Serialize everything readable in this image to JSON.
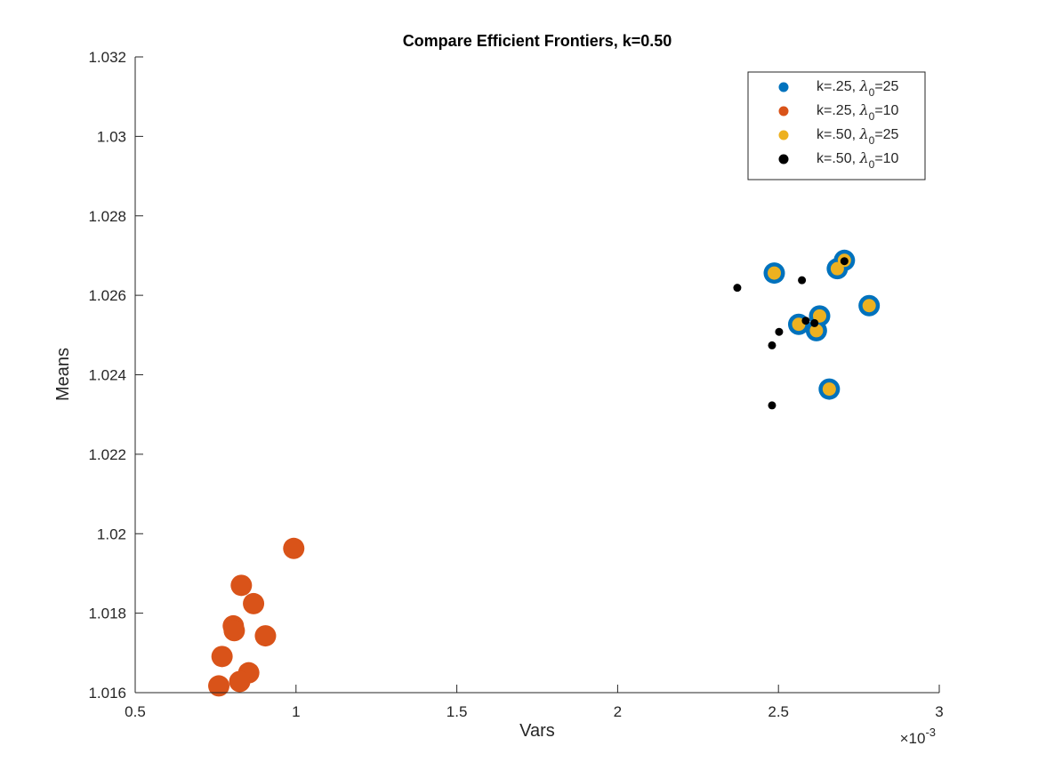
{
  "chart_data": {
    "type": "scatter",
    "title": "Compare Efficient Frontiers, k=0.50",
    "xlabel": "Vars",
    "ylabel": "Means",
    "x_exponent_label": "×10",
    "x_exponent_power": "-3",
    "xlim": [
      0.5,
      3
    ],
    "ylim": [
      1.016,
      1.032
    ],
    "x_ticks": [
      0.5,
      1,
      1.5,
      2,
      2.5,
      3
    ],
    "x_tick_labels": [
      "0.5",
      "1",
      "1.5",
      "2",
      "2.5",
      "3"
    ],
    "y_ticks": [
      1.016,
      1.018,
      1.02,
      1.022,
      1.024,
      1.026,
      1.028,
      1.03,
      1.032
    ],
    "y_tick_labels": [
      "1.016",
      "1.018",
      "1.02",
      "1.022",
      "1.024",
      "1.026",
      "1.028",
      "1.03",
      "1.032"
    ],
    "grid": false,
    "legend_position": "top-right",
    "series": [
      {
        "legend_prefix": "k=.25, ",
        "legend_sub": "0",
        "legend_suffix": "=25",
        "color": "#0072BD",
        "marker": "large",
        "points": [
          [
            2.487,
            1.02656
          ],
          [
            2.683,
            1.02667
          ],
          [
            2.705,
            1.02688
          ],
          [
            2.563,
            1.02527
          ],
          [
            2.628,
            1.02548
          ],
          [
            2.618,
            1.02511
          ],
          [
            2.782,
            1.02574
          ],
          [
            2.658,
            1.02364
          ]
        ]
      },
      {
        "legend_prefix": "k=.25, ",
        "legend_sub": "0",
        "legend_suffix": "=10",
        "color": "#D95319",
        "marker": "large",
        "points": [
          [
            0.993,
            1.01963
          ],
          [
            0.83,
            1.0187
          ],
          [
            0.868,
            1.01824
          ],
          [
            0.805,
            1.01768
          ],
          [
            0.808,
            1.01756
          ],
          [
            0.905,
            1.01743
          ],
          [
            0.77,
            1.01691
          ],
          [
            0.853,
            1.0165
          ],
          [
            0.76,
            1.01617
          ],
          [
            0.825,
            1.01628
          ]
        ]
      },
      {
        "legend_prefix": "k=.50, ",
        "legend_sub": "0",
        "legend_suffix": "=25",
        "color": "#EDB120",
        "marker": "medium",
        "points": [
          [
            2.487,
            1.02656
          ],
          [
            2.683,
            1.02667
          ],
          [
            2.705,
            1.02688
          ],
          [
            2.563,
            1.02527
          ],
          [
            2.628,
            1.02548
          ],
          [
            2.618,
            1.02511
          ],
          [
            2.782,
            1.02574
          ],
          [
            2.658,
            1.02364
          ]
        ]
      },
      {
        "legend_prefix": "k=.50, ",
        "legend_sub": "0",
        "legend_suffix": "=10",
        "color": "#000000",
        "marker": "small",
        "points": [
          [
            2.372,
            1.02619
          ],
          [
            2.573,
            1.02638
          ],
          [
            2.705,
            1.02686
          ],
          [
            2.585,
            1.02536
          ],
          [
            2.612,
            1.0253
          ],
          [
            2.502,
            1.02508
          ],
          [
            2.48,
            1.02474
          ],
          [
            2.48,
            1.02323
          ]
        ]
      }
    ]
  }
}
